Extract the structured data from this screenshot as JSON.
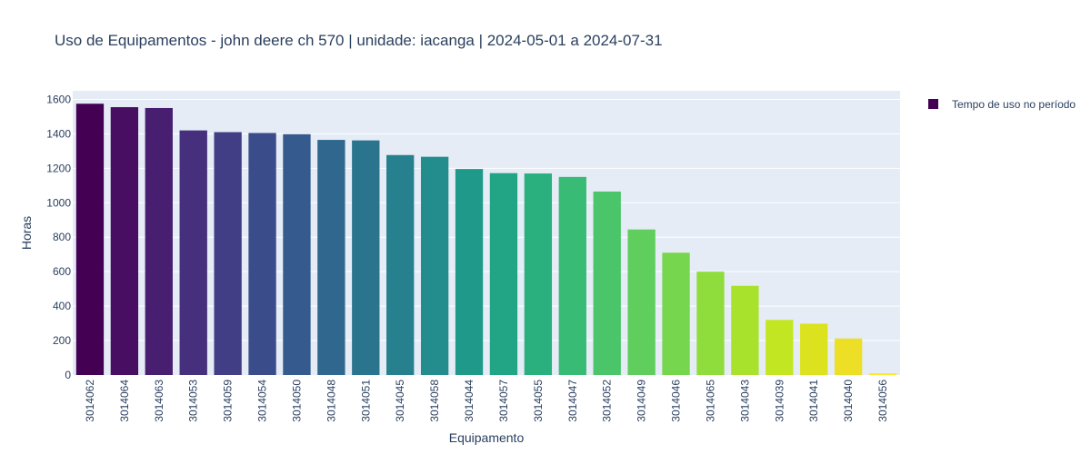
{
  "chart_data": {
    "type": "bar",
    "title": "Uso de Equipamentos - john deere ch 570 | unidade: iacanga | 2024-05-01 a 2024-07-31",
    "xlabel": "Equipamento",
    "ylabel": "Horas",
    "ylim": [
      0,
      1650
    ],
    "yticks": [
      0,
      200,
      400,
      600,
      800,
      1000,
      1200,
      1400,
      1600
    ],
    "grid": true,
    "legend_position": "top-right",
    "plot_background": "#e5ecf6",
    "categories": [
      "3014062",
      "3014064",
      "3014063",
      "3014053",
      "3014059",
      "3014054",
      "3014050",
      "3014048",
      "3014051",
      "3014045",
      "3014058",
      "3014044",
      "3014057",
      "3014055",
      "3014047",
      "3014052",
      "3014049",
      "3014046",
      "3014065",
      "3014043",
      "3014039",
      "3014041",
      "3014040",
      "3014056"
    ],
    "series": [
      {
        "name": "Tempo de uso no período",
        "values": [
          1575,
          1555,
          1550,
          1420,
          1410,
          1405,
          1398,
          1365,
          1362,
          1277,
          1267,
          1196,
          1172,
          1170,
          1150,
          1065,
          845,
          710,
          600,
          518,
          320,
          298,
          212,
          10
        ],
        "colors": [
          "#440154",
          "#470e61",
          "#481f70",
          "#462f7c",
          "#413e85",
          "#3b4c8b",
          "#355a8d",
          "#2f678e",
          "#2b748e",
          "#27808e",
          "#238d8d",
          "#1f998a",
          "#21a585",
          "#29b07e",
          "#38bb75",
          "#4ac56a",
          "#5fce5c",
          "#76d64d",
          "#8fdd3c",
          "#a8e22c",
          "#c2e622",
          "#dce31e",
          "#ecdf25",
          "#fde725"
        ]
      }
    ]
  }
}
